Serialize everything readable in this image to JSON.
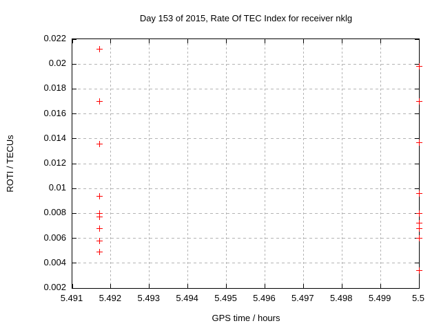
{
  "chart_data": {
    "type": "scatter",
    "title": "Day 153 of 2015, Rate Of TEC Index for receiver nklg",
    "xlabel": "GPS time / hours",
    "ylabel": "ROTI / TECUs",
    "xlim": [
      5.491,
      5.5
    ],
    "ylim": [
      0.002,
      0.022
    ],
    "xticks": [
      "5.491",
      "5.492",
      "5.493",
      "5.494",
      "5.495",
      "5.496",
      "5.497",
      "5.498",
      "5.499",
      "5.5"
    ],
    "yticks": [
      "0.002",
      "0.004",
      "0.006",
      "0.008",
      "0.01",
      "0.012",
      "0.014",
      "0.016",
      "0.018",
      "0.02",
      "0.022"
    ],
    "grid": true,
    "legend": "none",
    "marker": "plus",
    "marker_color": "#ff0000",
    "grid_color": "#b3b3b3",
    "border_color": "#000000",
    "series": [
      {
        "name": "series-1",
        "points": [
          [
            5.4917,
            0.0212
          ],
          [
            5.4917,
            0.017
          ],
          [
            5.4917,
            0.0136
          ],
          [
            5.4917,
            0.0094
          ],
          [
            5.4917,
            0.008
          ],
          [
            5.4917,
            0.0077
          ],
          [
            5.4917,
            0.0068
          ],
          [
            5.4917,
            0.0058
          ],
          [
            5.4917,
            0.0049
          ],
          [
            5.5,
            0.0198
          ],
          [
            5.5,
            0.017
          ],
          [
            5.5,
            0.0137
          ],
          [
            5.5,
            0.0096
          ],
          [
            5.5,
            0.008
          ],
          [
            5.5,
            0.0072
          ],
          [
            5.5,
            0.0068
          ],
          [
            5.5,
            0.006
          ],
          [
            5.5,
            0.0034
          ]
        ]
      }
    ]
  }
}
